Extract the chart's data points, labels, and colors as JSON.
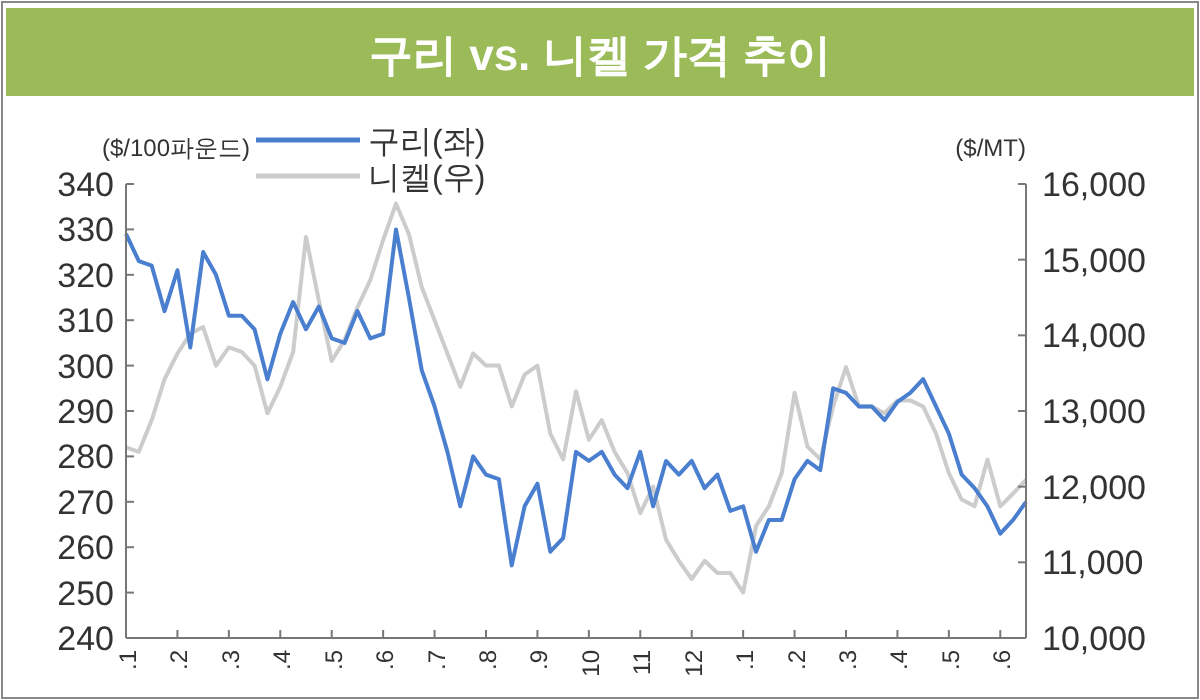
{
  "chart_data": {
    "type": "line",
    "title": "구리 vs. 니켈 가격 추이",
    "ylabel": "($/100파운드)",
    "y2label": "($/MT)",
    "categories": [
      ".1",
      null,
      null,
      null,
      ".2",
      null,
      null,
      null,
      ".3",
      null,
      null,
      null,
      ".4",
      null,
      null,
      null,
      ".5",
      null,
      null,
      null,
      ".6",
      null,
      null,
      null,
      ".7",
      null,
      null,
      null,
      ".8",
      null,
      null,
      null,
      ".9",
      null,
      null,
      null,
      "10",
      null,
      null,
      null,
      "11",
      null,
      null,
      null,
      "12",
      null,
      null,
      null,
      ".1",
      null,
      null,
      null,
      ".2",
      null,
      null,
      null,
      ".3",
      null,
      null,
      null,
      ".4",
      null,
      null,
      null,
      ".5",
      null,
      null,
      null,
      ".6",
      null,
      null
    ],
    "ylim": [
      240,
      340
    ],
    "yticks": [
      240,
      250,
      260,
      270,
      280,
      290,
      300,
      310,
      320,
      330,
      340
    ],
    "y2lim": [
      10000,
      16000
    ],
    "y2ticks": [
      {
        "value": 10000,
        "label": "10,000"
      },
      {
        "value": 11000,
        "label": "11,000"
      },
      {
        "value": 12000,
        "label": "12,000"
      },
      {
        "value": 13000,
        "label": "13,000"
      },
      {
        "value": 14000,
        "label": "14,000"
      },
      {
        "value": 15000,
        "label": "15,000"
      },
      {
        "value": 16000,
        "label": "16,000"
      }
    ],
    "grid": false,
    "legend": "top left",
    "marker": "none",
    "line_style": "solid",
    "series": [
      {
        "name": "니켈(우)",
        "color": "#cccccc",
        "axis": "y2",
        "values": [
          12520,
          12460,
          12880,
          13420,
          13760,
          14020,
          14110,
          13600,
          13840,
          13780,
          13600,
          12970,
          13320,
          13780,
          15300,
          14460,
          13660,
          13940,
          14370,
          14730,
          15260,
          15740,
          15340,
          14640,
          14200,
          13760,
          13320,
          13760,
          13600,
          13600,
          13060,
          13480,
          13600,
          12700,
          12360,
          13260,
          12620,
          12880,
          12460,
          12180,
          11650,
          12000,
          11300,
          11020,
          10780,
          11020,
          10860,
          10860,
          10600,
          11480,
          11740,
          12180,
          13240,
          12530,
          12360,
          13060,
          13580,
          13060,
          13060,
          12970,
          13140,
          13140,
          13060,
          12700,
          12180,
          11830,
          11740,
          12360,
          11740,
          11910,
          12090
        ]
      },
      {
        "name": "구리(좌)",
        "color": "#4a7fd0",
        "axis": "y",
        "values": [
          329,
          323,
          322,
          312,
          321,
          304,
          325,
          320,
          311,
          311,
          308,
          297,
          307,
          314,
          308,
          313,
          306,
          305,
          312,
          306,
          307,
          330,
          315,
          299,
          291,
          281,
          269,
          280,
          276,
          275,
          256,
          269,
          274,
          259,
          262,
          281,
          279,
          281,
          276,
          273,
          281,
          269,
          279,
          276,
          279,
          273,
          276,
          268,
          269,
          259,
          266,
          266,
          275,
          279,
          277,
          295,
          294,
          291,
          291,
          288,
          292,
          294,
          297,
          291,
          285,
          276,
          273,
          269,
          263,
          266,
          270
        ]
      }
    ]
  }
}
